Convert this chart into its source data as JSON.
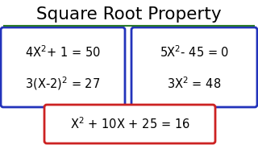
{
  "title": "Square Root Property",
  "title_fontsize": 15.5,
  "title_color": "#000000",
  "underline_color": "#2a7a2a",
  "bg_color": "#ffffff",
  "box1_color": "#2233bb",
  "box2_color": "#2233bb",
  "box3_color": "#cc2222",
  "equation_fontsize": 10.5,
  "equation_color": "#000000",
  "box1_eq1": "4X$^2$+ 1 = 50",
  "box1_eq2": "3(X-2)$^2$ = 27",
  "box2_eq1": "5X$^2$- 45 = 0",
  "box2_eq2": "3X$^2$ = 48",
  "box3_eq": "X$^2$ + 10X + 25 = 16"
}
